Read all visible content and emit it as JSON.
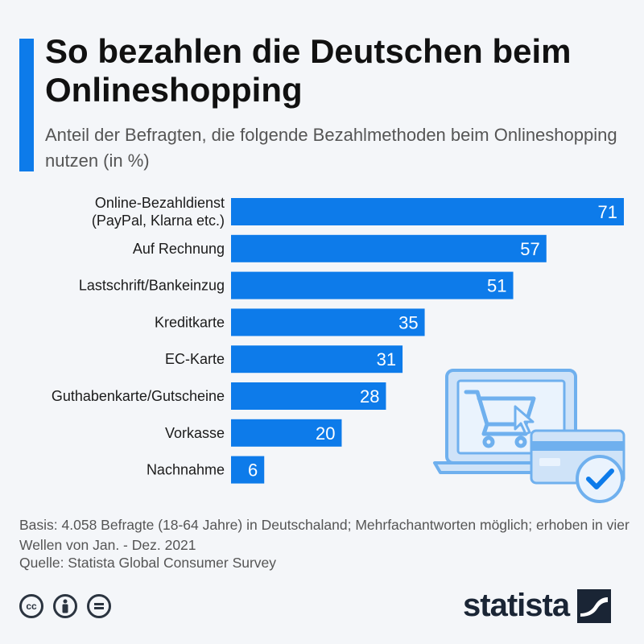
{
  "header": {
    "title": "So bezahlen die Deutschen beim Onlineshopping",
    "subtitle": "Anteil der Befragten, die folgende Bezahlmethoden beim Onlineshopping nutzen (in %)"
  },
  "chart_data": {
    "type": "bar",
    "orientation": "horizontal",
    "categories": [
      [
        "Online-Bezahldienst",
        "(PayPal, Klarna etc.)"
      ],
      [
        "Auf Rechnung"
      ],
      [
        "Lastschrift/Bankeinzug"
      ],
      [
        "Kreditkarte"
      ],
      [
        "EC-Karte"
      ],
      [
        "Guthabenkarte/Gutscheine"
      ],
      [
        "Vorkasse"
      ],
      [
        "Nachnahme"
      ]
    ],
    "values": [
      71,
      57,
      51,
      35,
      31,
      28,
      20,
      6
    ],
    "xlim": [
      0,
      71
    ],
    "grid": false,
    "bar_color": "#0d7bea",
    "value_label_color": "#ffffff"
  },
  "footer": {
    "note": "Basis: 4.058 Befragte (18-64 Jahre) in Deutschaland; Mehrfachantworten möglich; erhoben in vier Wellen von Jan. - Dez. 2021",
    "source": "Quelle: Statista Global Consumer Survey"
  },
  "license_icons": [
    "cc-icon",
    "attribution-icon",
    "no-derivatives-icon"
  ],
  "brand": {
    "name": "statista",
    "color": "#1a2535"
  }
}
